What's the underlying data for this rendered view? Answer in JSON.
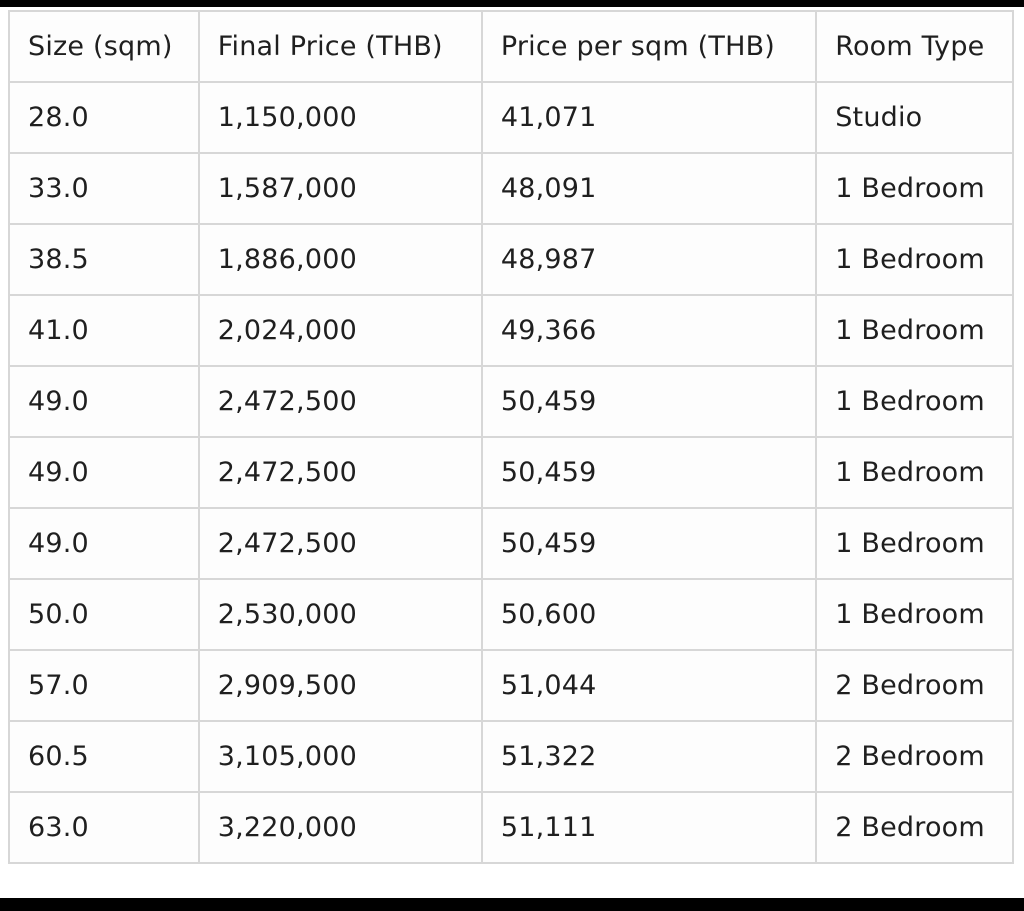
{
  "colors": {
    "letterbox_bar": "#000000",
    "table_border": "#d7d7d7",
    "table_text": "#1f1f1f",
    "cell_background": "#fdfdfd",
    "page_background": "#ffffff"
  },
  "chart_data": {
    "type": "table",
    "columns": [
      "Size (sqm)",
      "Final Price (THB)",
      "Price per sqm (THB)",
      "Room Type"
    ],
    "rows": [
      [
        "28.0",
        "1,150,000",
        "41,071",
        "Studio"
      ],
      [
        "33.0",
        "1,587,000",
        "48,091",
        "1 Bedroom"
      ],
      [
        "38.5",
        "1,886,000",
        "48,987",
        "1 Bedroom"
      ],
      [
        "41.0",
        "2,024,000",
        "49,366",
        "1 Bedroom"
      ],
      [
        "49.0",
        "2,472,500",
        "50,459",
        "1 Bedroom"
      ],
      [
        "49.0",
        "2,472,500",
        "50,459",
        "1 Bedroom"
      ],
      [
        "49.0",
        "2,472,500",
        "50,459",
        "1 Bedroom"
      ],
      [
        "50.0",
        "2,530,000",
        "50,600",
        "1 Bedroom"
      ],
      [
        "57.0",
        "2,909,500",
        "51,044",
        "2 Bedroom"
      ],
      [
        "60.5",
        "3,105,000",
        "51,322",
        "2 Bedroom"
      ],
      [
        "63.0",
        "3,220,000",
        "51,111",
        "2 Bedroom"
      ]
    ]
  }
}
